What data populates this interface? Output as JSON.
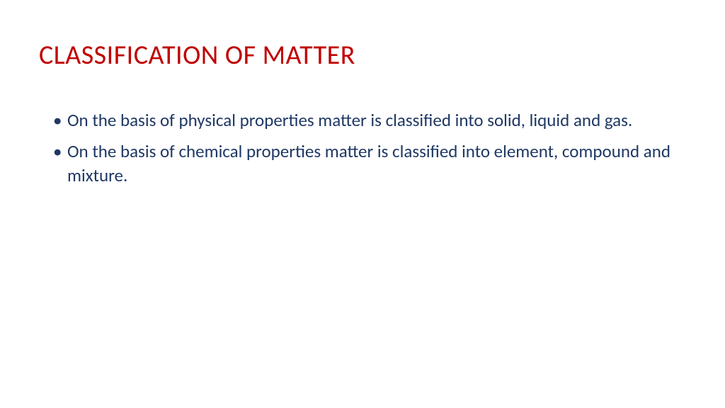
{
  "slide": {
    "title": "CLASSIFICATION OF MATTER",
    "title_color": "#c00000",
    "body_color": "#1f3864",
    "background_color": "#ffffff",
    "title_fontsize": 38,
    "body_fontsize": 25,
    "bullets": [
      "On the basis of physical properties matter is classified into solid, liquid and gas.",
      "On the basis of chemical properties matter is classified into element, compound and mixture."
    ]
  }
}
